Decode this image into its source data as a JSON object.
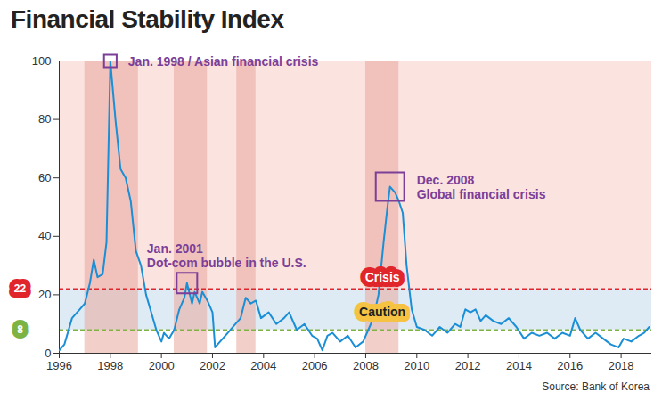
{
  "chart_data": {
    "type": "line",
    "title": "Financial Stability Index",
    "source": "Source: Bank of Korea",
    "color": "#1a8fd6",
    "x": [
      1996.0,
      1996.2,
      1996.5,
      1996.8,
      1997.0,
      1997.2,
      1997.35,
      1997.5,
      1997.7,
      1997.85,
      1998.0,
      1998.2,
      1998.4,
      1998.6,
      1998.8,
      1999.0,
      1999.2,
      1999.4,
      1999.6,
      1999.8,
      2000.0,
      2000.1,
      2000.3,
      2000.5,
      2000.7,
      2000.9,
      2001.0,
      2001.2,
      2001.3,
      2001.5,
      2001.6,
      2001.8,
      2002.0,
      2002.1,
      2002.3,
      2002.6,
      2002.9,
      2003.1,
      2003.3,
      2003.5,
      2003.7,
      2003.9,
      2004.2,
      2004.5,
      2004.8,
      2005.0,
      2005.3,
      2005.6,
      2005.9,
      2006.1,
      2006.3,
      2006.5,
      2006.7,
      2007.0,
      2007.3,
      2007.6,
      2007.9,
      2008.1,
      2008.3,
      2008.5,
      2008.7,
      2008.85,
      2008.95,
      2009.15,
      2009.3,
      2009.45,
      2009.6,
      2009.8,
      2010.0,
      2010.3,
      2010.6,
      2010.9,
      2011.2,
      2011.5,
      2011.7,
      2011.9,
      2012.1,
      2012.3,
      2012.5,
      2012.7,
      2013.0,
      2013.3,
      2013.6,
      2013.9,
      2014.2,
      2014.5,
      2014.8,
      2015.1,
      2015.4,
      2015.7,
      2016.0,
      2016.2,
      2016.4,
      2016.7,
      2017.0,
      2017.3,
      2017.6,
      2017.9,
      2018.1,
      2018.4,
      2018.7,
      2018.9,
      2019.1
    ],
    "values": [
      1,
      3,
      12,
      15,
      17,
      24,
      32,
      26,
      27,
      38,
      100,
      80,
      63,
      60,
      52,
      35,
      30,
      20,
      14,
      8,
      4,
      7,
      5,
      8,
      15,
      19,
      24,
      17,
      21,
      17,
      21,
      18,
      14,
      2,
      4,
      7,
      10,
      12,
      19,
      17,
      18,
      12,
      14,
      10,
      12,
      14,
      8,
      10,
      6,
      5,
      1,
      6,
      7,
      4,
      6,
      2,
      4,
      8,
      12,
      20,
      38,
      50,
      57,
      55,
      52,
      48,
      30,
      15,
      9,
      8,
      6,
      9,
      7,
      10,
      9,
      15,
      14,
      15,
      11,
      13,
      11,
      10,
      12,
      9,
      5,
      7,
      6,
      7,
      5,
      7,
      6,
      12,
      8,
      5,
      7,
      5,
      3,
      2,
      5,
      4,
      6,
      7,
      9
    ],
    "xlim": [
      1996,
      2019.2
    ],
    "ylim": [
      0,
      100
    ],
    "xticks": [
      1996,
      1998,
      2000,
      2002,
      2004,
      2006,
      2008,
      2010,
      2012,
      2014,
      2016,
      2018
    ],
    "yticks": [
      0,
      20,
      40,
      60,
      80,
      100
    ],
    "grid": false,
    "shaded_periods": [
      [
        1997.0,
        1999.1
      ],
      [
        2000.5,
        2001.8
      ],
      [
        2002.95,
        2003.7
      ],
      [
        2008.0,
        2009.3
      ]
    ],
    "thresholds": [
      {
        "value": 22,
        "label": "Crisis",
        "color": "#e0252b"
      },
      {
        "value": 8,
        "label": "Caution",
        "color": "#7cb342"
      }
    ],
    "annotations": [
      {
        "text": "Jan. 1998 / Asian financial crisis",
        "x": 1998.0,
        "y": 100
      },
      {
        "text": "Jan. 2001\nDot-com bubble in the U.S.",
        "x": 2001.0,
        "y": 24
      },
      {
        "text": "Dec. 2008\nGlobal financial crisis",
        "x": 2008.95,
        "y": 57
      }
    ]
  }
}
